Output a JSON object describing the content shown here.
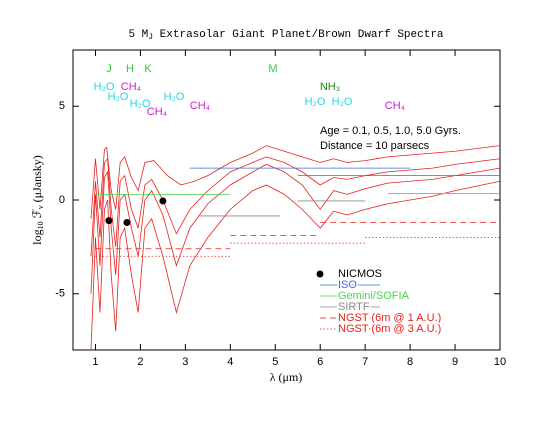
{
  "chart_data": {
    "type": "line",
    "title": [
      "5 M",
      "J",
      " Extrasolar Giant Planet/Brown Dwarf Spectra"
    ],
    "x_label": "λ (μm)",
    "y_label": [
      "log",
      "10",
      " ℱ",
      "ν",
      " (μJansky)"
    ],
    "xlim": [
      0.5,
      10
    ],
    "ylim": [
      -8,
      8
    ],
    "xticks": [
      1,
      2,
      3,
      4,
      5,
      6,
      7,
      8,
      9,
      10
    ],
    "yticks": [
      -5,
      0,
      5
    ],
    "series": [
      {
        "color": "#e8201c",
        "x": [
          0.9,
          1.0,
          1.1,
          1.2,
          1.25,
          1.35,
          1.45,
          1.55,
          1.65,
          1.8,
          1.95,
          2.1,
          2.3,
          2.6,
          2.9,
          3.2,
          3.5,
          4.0,
          4.5,
          4.8,
          5.2,
          5.6,
          6.0,
          6.3,
          6.6,
          7.0,
          7.5,
          8.0,
          8.5,
          9.0,
          10
        ],
        "values": [
          -1,
          2.2,
          -0.5,
          2.7,
          2.8,
          0.5,
          -0.5,
          2.0,
          2.3,
          1.2,
          0.5,
          2.0,
          2.1,
          1.3,
          0.8,
          1.0,
          1.3,
          2.0,
          2.5,
          2.9,
          2.6,
          2.3,
          2.0,
          2.2,
          2.0,
          2.1,
          2.3,
          2.4,
          2.5,
          2.6,
          2.9
        ]
      },
      {
        "color": "#e8201c",
        "x": [
          0.9,
          1.0,
          1.1,
          1.2,
          1.27,
          1.35,
          1.45,
          1.55,
          1.65,
          1.8,
          1.95,
          2.1,
          2.25,
          2.5,
          2.8,
          3.1,
          3.5,
          4.0,
          4.5,
          4.8,
          5.2,
          5.6,
          6.0,
          6.3,
          6.6,
          7.0,
          7.5,
          8.0,
          8.5,
          9.0,
          10
        ],
        "values": [
          -3,
          1.0,
          -2,
          2.0,
          2.2,
          -0.5,
          -2.5,
          1.0,
          1.3,
          -0.5,
          -1.5,
          0.8,
          1.1,
          0.0,
          -1.8,
          -0.5,
          0.5,
          1.5,
          2.0,
          2.3,
          2.0,
          1.5,
          0.8,
          1.2,
          1.1,
          1.3,
          1.5,
          1.6,
          1.7,
          1.9,
          2.2
        ]
      },
      {
        "color": "#e8201c",
        "x": [
          0.9,
          1.0,
          1.1,
          1.2,
          1.27,
          1.35,
          1.45,
          1.55,
          1.65,
          1.8,
          1.95,
          2.1,
          2.25,
          2.5,
          2.8,
          3.1,
          3.5,
          4.0,
          4.5,
          4.8,
          5.2,
          5.6,
          6.0,
          6.3,
          6.6,
          7.0,
          7.5,
          8.0,
          8.5,
          9.0,
          10
        ],
        "values": [
          -5,
          0.3,
          -3.5,
          1.2,
          1.5,
          -1.5,
          -4,
          0.0,
          0.3,
          -1.5,
          -3,
          0.0,
          0.5,
          -0.8,
          -3.5,
          -1.5,
          -0.2,
          0.8,
          1.5,
          1.9,
          1.5,
          0.8,
          -0.5,
          0.5,
          0.3,
          0.6,
          0.9,
          1.0,
          1.1,
          1.3,
          1.7
        ]
      },
      {
        "color": "#e8201c",
        "x": [
          0.9,
          1.0,
          1.1,
          1.2,
          1.27,
          1.35,
          1.45,
          1.55,
          1.65,
          1.8,
          1.95,
          2.1,
          2.25,
          2.5,
          2.8,
          3.1,
          3.5,
          4.0,
          4.5,
          4.8,
          5.2,
          5.6,
          6.0,
          6.3,
          6.6,
          7.0,
          7.5,
          8.0,
          8.5,
          9.0,
          10
        ],
        "values": [
          -8,
          -2,
          -6,
          -0.5,
          0.0,
          -4,
          -7,
          -2,
          -1.5,
          -4,
          -6,
          -1.5,
          -1.0,
          -3,
          -6,
          -3.5,
          -2,
          -0.5,
          0.5,
          0.8,
          0.3,
          -0.5,
          -1.5,
          -0.6,
          -0.8,
          -0.5,
          -0.2,
          0.0,
          0.2,
          0.5,
          1.0
        ]
      }
    ],
    "points": {
      "name": "NICMOS",
      "color": "#000000",
      "x": [
        1.3,
        1.7,
        2.5
      ],
      "values": [
        -1.1,
        -1.2,
        -0.05
      ]
    },
    "limits": [
      {
        "name": "ISO",
        "color": "#3a6fd8",
        "style": "solid",
        "segments": [
          {
            "x": [
              3.1,
              8.0
            ],
            "value": 1.7
          },
          {
            "x": [
              5.5,
              10
            ],
            "value": 1.3
          }
        ]
      },
      {
        "name": "Gemini/SOFIA",
        "color": "#4cd44c",
        "style": "solid",
        "segments": [
          {
            "x": [
              1.0,
              4.0
            ],
            "value": 0.3
          },
          {
            "x": [
              7.5,
              10
            ],
            "value": 0.35
          }
        ]
      },
      {
        "name": "SIRTF",
        "color": "#888888",
        "style": "solid",
        "segments": [
          {
            "x": [
              3.3,
              5.1
            ],
            "value": -0.85
          },
          {
            "x": [
              5.5,
              7.0
            ],
            "value": -0.05
          }
        ]
      },
      {
        "name": "NGST (6m @ 1 A.U.)",
        "color": "#e8201c",
        "style": "dashed",
        "segments": [
          {
            "x": [
              1.0,
              4.0
            ],
            "value": -2.6
          },
          {
            "x": [
              4.0,
              6.0
            ],
            "value": -1.9
          },
          {
            "x": [
              6.0,
              10
            ],
            "value": -1.2
          }
        ]
      },
      {
        "name": "NGST (6m @ 3 A.U.)",
        "color": "#e8201c",
        "style": "dotted",
        "segments": [
          {
            "x": [
              1.0,
              4.0
            ],
            "value": -3.0
          },
          {
            "x": [
              4.0,
              7.0
            ],
            "value": -2.3
          },
          {
            "x": [
              7.0,
              10
            ],
            "value": -2.0
          }
        ]
      }
    ],
    "annotations": [
      {
        "text": "J",
        "color": "#33cc33"
      },
      {
        "text": "H",
        "color": "#33cc33"
      },
      {
        "text": "K",
        "color": "#33cc33"
      },
      {
        "text": "M",
        "color": "#33cc33"
      },
      {
        "text": "H₂O",
        "color": "#22d8e0"
      },
      {
        "text": "H₂O",
        "color": "#22d8e0"
      },
      {
        "text": "H₂O",
        "color": "#22d8e0"
      },
      {
        "text": "H₂O",
        "color": "#22d8e0"
      },
      {
        "text": "H₂O",
        "color": "#22d8e0"
      },
      {
        "text": "H₂O",
        "color": "#22d8e0"
      },
      {
        "text": "CH₄",
        "color": "#d020d0"
      },
      {
        "text": "CH₄",
        "color": "#d020d0"
      },
      {
        "text": "CH₄",
        "color": "#d020d0"
      },
      {
        "text": "CH₄",
        "color": "#d020d0"
      },
      {
        "text": "NH₃",
        "color": "#1a8a1a"
      },
      {
        "text": "Age = 0.1, 0.5, 1.0, 5.0 Gyrs.",
        "color": "#000000"
      },
      {
        "text": "Distance = 10 parsecs",
        "color": "#000000"
      }
    ]
  }
}
